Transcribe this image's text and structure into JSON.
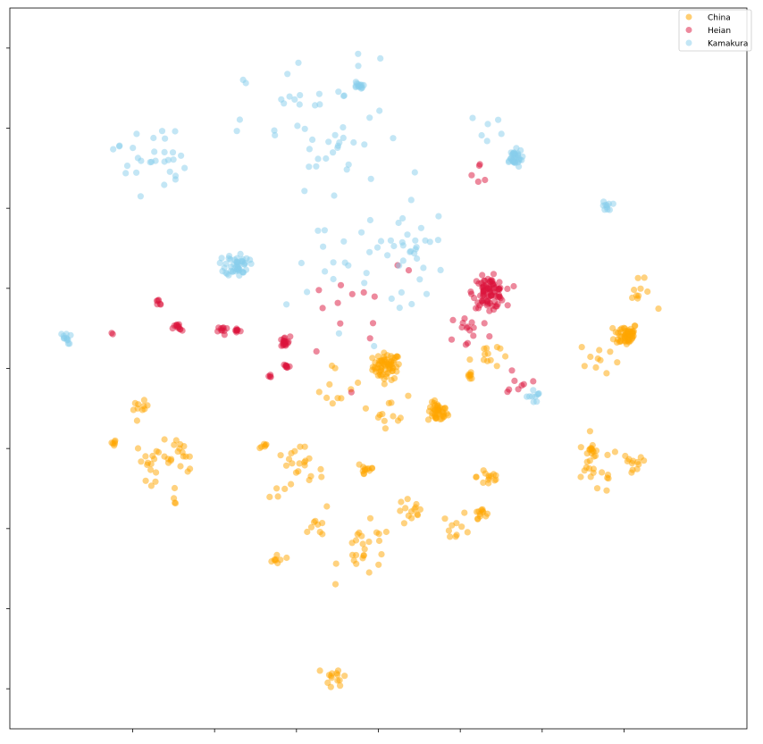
{
  "chart_data": {
    "type": "scatter",
    "title": "",
    "xlabel": "",
    "ylabel": "",
    "xlim": [
      -9,
      9
    ],
    "ylim": [
      -9,
      9
    ],
    "grid": false,
    "x_ticks": [
      -6,
      -4,
      -2,
      0,
      2,
      4,
      6
    ],
    "y_ticks": [
      -8,
      -6,
      -4,
      -2,
      0,
      2,
      4,
      6,
      8
    ],
    "show_tick_labels": false,
    "legend_position": "top-right",
    "series": [
      {
        "name": "China",
        "color": "#FFA500",
        "clusters": [
          {
            "cx": 0.2,
            "cy": 0.05,
            "spread": 0.28,
            "n": 70
          },
          {
            "cx": 1.45,
            "cy": -1.1,
            "spread": 0.2,
            "n": 45
          },
          {
            "cx": 6.05,
            "cy": 0.85,
            "spread": 0.24,
            "n": 55
          },
          {
            "cx": 5.2,
            "cy": -2.05,
            "spread": 0.12,
            "n": 12
          },
          {
            "cx": 2.5,
            "cy": -3.6,
            "spread": 0.12,
            "n": 12
          },
          {
            "cx": 6.35,
            "cy": 1.85,
            "spread": 0.3,
            "n": 10
          },
          {
            "cx": 5.4,
            "cy": 0.25,
            "spread": 0.4,
            "n": 10
          },
          {
            "cx": 2.6,
            "cy": 0.35,
            "spread": 0.3,
            "n": 12
          },
          {
            "cx": 2.25,
            "cy": -0.2,
            "spread": 0.1,
            "n": 8
          },
          {
            "cx": 0.3,
            "cy": -1.05,
            "spread": 0.35,
            "n": 12
          },
          {
            "cx": -1.0,
            "cy": -0.45,
            "spread": 0.5,
            "n": 10
          },
          {
            "cx": -5.8,
            "cy": -1.0,
            "spread": 0.15,
            "n": 10
          },
          {
            "cx": -6.45,
            "cy": -1.85,
            "spread": 0.1,
            "n": 6
          },
          {
            "cx": -5.45,
            "cy": -2.3,
            "spread": 0.4,
            "n": 20
          },
          {
            "cx": -4.8,
            "cy": -2.2,
            "spread": 0.35,
            "n": 14
          },
          {
            "cx": -5.0,
            "cy": -3.2,
            "spread": 0.15,
            "n": 4
          },
          {
            "cx": -2.0,
            "cy": -2.6,
            "spread": 0.55,
            "n": 25
          },
          {
            "cx": -2.8,
            "cy": -1.95,
            "spread": 0.1,
            "n": 6
          },
          {
            "cx": -0.3,
            "cy": -2.5,
            "spread": 0.2,
            "n": 12
          },
          {
            "cx": 2.7,
            "cy": -2.7,
            "spread": 0.25,
            "n": 14
          },
          {
            "cx": 5.3,
            "cy": -2.55,
            "spread": 0.5,
            "n": 20
          },
          {
            "cx": 6.2,
            "cy": -2.45,
            "spread": 0.3,
            "n": 12
          },
          {
            "cx": 0.8,
            "cy": -3.6,
            "spread": 0.3,
            "n": 14
          },
          {
            "cx": -1.5,
            "cy": -4.0,
            "spread": 0.15,
            "n": 8
          },
          {
            "cx": -0.3,
            "cy": -4.55,
            "spread": 0.55,
            "n": 25
          },
          {
            "cx": -2.5,
            "cy": -4.8,
            "spread": 0.18,
            "n": 8
          },
          {
            "cx": -1.0,
            "cy": -7.7,
            "spread": 0.25,
            "n": 14
          },
          {
            "cx": 1.9,
            "cy": -3.95,
            "spread": 0.3,
            "n": 10
          }
        ]
      },
      {
        "name": "Heian",
        "color": "#DC143C",
        "clusters": [
          {
            "cx": 2.7,
            "cy": 1.9,
            "spread": 0.32,
            "n": 90
          },
          {
            "cx": -2.3,
            "cy": 0.65,
            "spread": 0.12,
            "n": 18
          },
          {
            "cx": -4.9,
            "cy": 1.0,
            "spread": 0.1,
            "n": 12
          },
          {
            "cx": -3.8,
            "cy": 0.95,
            "spread": 0.1,
            "n": 10
          },
          {
            "cx": -3.45,
            "cy": 0.95,
            "spread": 0.08,
            "n": 8
          },
          {
            "cx": -2.25,
            "cy": 0.05,
            "spread": 0.08,
            "n": 8
          },
          {
            "cx": -2.65,
            "cy": -0.2,
            "spread": 0.05,
            "n": 4
          },
          {
            "cx": -5.35,
            "cy": 1.65,
            "spread": 0.1,
            "n": 6
          },
          {
            "cx": 2.2,
            "cy": 0.95,
            "spread": 0.4,
            "n": 14
          },
          {
            "cx": 3.45,
            "cy": -0.25,
            "spread": 0.35,
            "n": 8
          },
          {
            "cx": -0.5,
            "cy": 1.8,
            "spread": 1.4,
            "n": 14
          },
          {
            "cx": -6.5,
            "cy": 0.85,
            "spread": 0.05,
            "n": 2
          },
          {
            "cx": 2.5,
            "cy": 4.65,
            "spread": 0.4,
            "n": 5
          }
        ]
      },
      {
        "name": "Kamakura",
        "color": "#87CEEB",
        "clusters": [
          {
            "cx": -3.45,
            "cy": 2.6,
            "spread": 0.24,
            "n": 50
          },
          {
            "cx": 3.3,
            "cy": 5.25,
            "spread": 0.18,
            "n": 35
          },
          {
            "cx": -0.5,
            "cy": 7.05,
            "spread": 0.1,
            "n": 14
          },
          {
            "cx": -7.65,
            "cy": 0.75,
            "spread": 0.12,
            "n": 12
          },
          {
            "cx": 5.6,
            "cy": 4.05,
            "spread": 0.1,
            "n": 10
          },
          {
            "cx": 3.8,
            "cy": -0.7,
            "spread": 0.15,
            "n": 10
          },
          {
            "cx": -5.6,
            "cy": 5.3,
            "spread": 0.75,
            "n": 30
          },
          {
            "cx": -1.3,
            "cy": 5.8,
            "spread": 1.6,
            "n": 50
          },
          {
            "cx": 1.0,
            "cy": 3.0,
            "spread": 0.8,
            "n": 22
          },
          {
            "cx": -0.5,
            "cy": 2.6,
            "spread": 1.3,
            "n": 30
          },
          {
            "cx": 2.7,
            "cy": 6.0,
            "spread": 0.35,
            "n": 6
          }
        ]
      }
    ]
  }
}
